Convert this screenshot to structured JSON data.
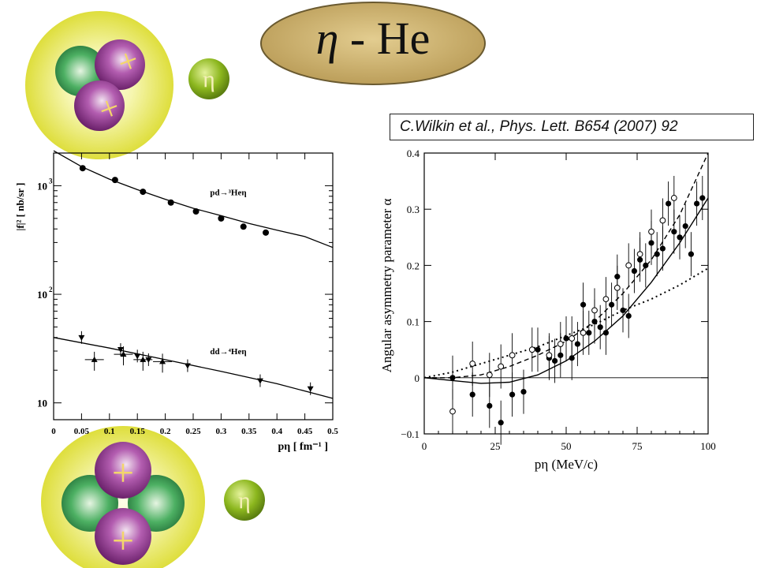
{
  "title": {
    "eta": "η",
    "rest": " - He"
  },
  "citation": "C.Wilkin et al., Phys. Lett. B654 (2007) 92",
  "eta_symbol": "η",
  "plus_sign": "+",
  "colors": {
    "oval": "#c9ad6c",
    "nucleus_outer": "#e2e24a",
    "proton": "#8a3a8a",
    "neutron": "#2f9a4f",
    "eta_ball": "#8fb820"
  },
  "chart_data": [
    {
      "type": "scatter",
      "ylabel": "|f|² [ nb/sr ]",
      "xlabel": "p_η [ fm⁻¹ ]",
      "xlim": [
        0,
        0.5
      ],
      "ylim": [
        7,
        2000
      ],
      "yscale": "log",
      "x_ticks": [
        "0",
        "0.05",
        "0.1",
        "0.15",
        "0.2",
        "0.25",
        "0.3",
        "0.35",
        "0.4",
        "0.45",
        "0.5"
      ],
      "y_ticks": [
        {
          "label": "10",
          "value": 10
        },
        {
          "label": "10",
          "sup": "2",
          "value": 100
        },
        {
          "label": "10",
          "sup": "3",
          "value": 1000
        }
      ],
      "annotations": [
        {
          "text": "pd→³Heη",
          "x": 0.3,
          "y": 820
        },
        {
          "text": "dd→⁴Heη",
          "x": 0.3,
          "y": 28
        }
      ],
      "series": [
        {
          "marker": "circle",
          "x": [
            0.052,
            0.11,
            0.16,
            0.21,
            0.255,
            0.3,
            0.34,
            0.38
          ],
          "y": [
            1450,
            1130,
            880,
            700,
            580,
            500,
            420,
            370
          ]
        },
        {
          "marker": "triangle-down",
          "x": [
            0.05,
            0.12,
            0.15,
            0.17,
            0.24,
            0.37,
            0.46
          ],
          "y": [
            40,
            31,
            27,
            25,
            22,
            16,
            13.5
          ]
        },
        {
          "marker": "triangle-up",
          "x": [
            0.073,
            0.125,
            0.16,
            0.195
          ],
          "y": [
            25,
            28,
            25,
            24
          ]
        },
        {
          "marker": "line",
          "x": [
            0,
            0.05,
            0.1,
            0.15,
            0.2,
            0.25,
            0.3,
            0.35,
            0.4,
            0.45,
            0.5
          ],
          "y": [
            2100,
            1500,
            1150,
            920,
            750,
            620,
            530,
            450,
            390,
            340,
            270
          ]
        },
        {
          "marker": "line",
          "x": [
            0,
            0.1,
            0.2,
            0.3,
            0.4,
            0.5
          ],
          "y": [
            40,
            32,
            25,
            19.5,
            15,
            11
          ]
        }
      ]
    },
    {
      "type": "scatter",
      "ylabel": "Angular asymmetry parameter α",
      "xlabel": "p_η (MeV/c)",
      "xlim": [
        0,
        100
      ],
      "ylim": [
        -0.1,
        0.4
      ],
      "x_ticks": [
        "0",
        "25",
        "50",
        "75",
        "100"
      ],
      "y_ticks": [
        "−0.1",
        "0",
        "0.1",
        "0.2",
        "0.3",
        "0.4"
      ],
      "series": [
        {
          "marker": "filled-circle",
          "x": [
            10,
            17,
            23,
            27,
            31,
            35,
            40,
            44,
            46,
            48,
            50,
            52,
            54,
            56,
            58,
            60,
            62,
            64,
            66,
            68,
            70,
            72,
            74,
            76,
            78,
            80,
            82,
            84,
            86,
            88,
            90,
            92,
            94,
            96,
            98
          ],
          "y": [
            0,
            -0.03,
            -0.05,
            -0.08,
            -0.03,
            -0.025,
            0.05,
            0.035,
            0.03,
            0.04,
            0.07,
            0.035,
            0.06,
            0.13,
            0.08,
            0.1,
            0.09,
            0.08,
            0.13,
            0.18,
            0.12,
            0.11,
            0.19,
            0.21,
            0.2,
            0.24,
            0.22,
            0.23,
            0.31,
            0.26,
            0.25,
            0.27,
            0.22,
            0.31,
            0.32
          ]
        },
        {
          "marker": "open-circle",
          "x": [
            10,
            17,
            23,
            27,
            31,
            38,
            44,
            48,
            52,
            56,
            60,
            64,
            68,
            72,
            76,
            80,
            84,
            88
          ],
          "y": [
            -0.06,
            0.025,
            0.005,
            0.02,
            0.04,
            0.05,
            0.04,
            0.06,
            0.07,
            0.08,
            0.12,
            0.14,
            0.16,
            0.2,
            0.22,
            0.26,
            0.28,
            0.32
          ]
        },
        {
          "marker": "solid-line",
          "x": [
            0,
            10,
            20,
            30,
            40,
            50,
            60,
            70,
            80,
            90,
            100
          ],
          "y": [
            0,
            -0.005,
            -0.01,
            -0.008,
            0.005,
            0.03,
            0.065,
            0.11,
            0.17,
            0.24,
            0.32
          ]
        },
        {
          "marker": "dashed-line",
          "x": [
            0,
            10,
            20,
            30,
            40,
            50,
            60,
            70,
            80,
            90,
            100
          ],
          "y": [
            0,
            0,
            0.005,
            0.02,
            0.04,
            0.065,
            0.1,
            0.15,
            0.21,
            0.29,
            0.4
          ]
        },
        {
          "marker": "dotted-line",
          "x": [
            0,
            10,
            20,
            30,
            40,
            50,
            60,
            70,
            80,
            90,
            100
          ],
          "y": [
            0,
            0.01,
            0.025,
            0.04,
            0.055,
            0.075,
            0.095,
            0.12,
            0.14,
            0.165,
            0.195
          ]
        }
      ]
    }
  ]
}
